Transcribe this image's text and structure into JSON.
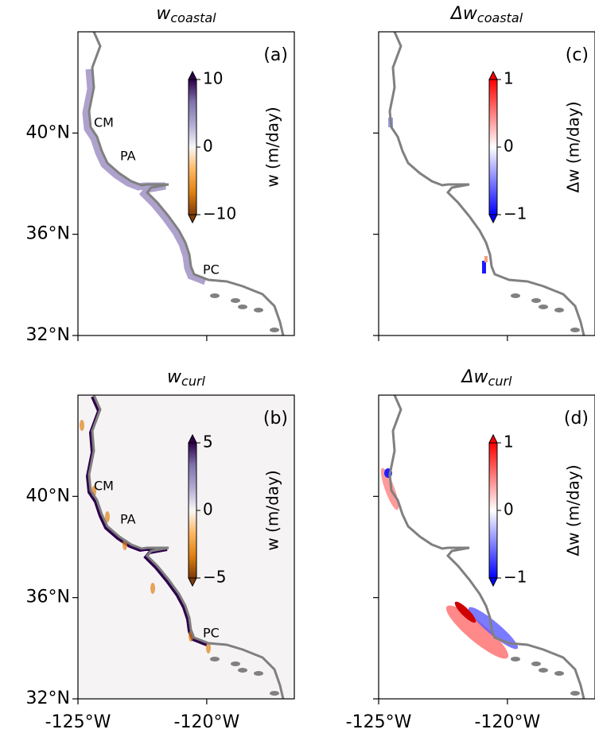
{
  "chart_data": [
    {
      "type": "map",
      "title": "w",
      "title_subscript": "coastal",
      "panel_label": "(a)",
      "xlim": [
        -125,
        -116.6
      ],
      "ylim": [
        32,
        44
      ],
      "yticks": [
        {
          "value": 32,
          "label": "32°N"
        },
        {
          "value": 36,
          "label": "36°N"
        },
        {
          "value": 40,
          "label": "40°N"
        }
      ],
      "annotations": [
        "CM",
        "PA",
        "PC"
      ],
      "colorbar": {
        "clim": [
          -10,
          10
        ],
        "ticks": [
          {
            "value": -10,
            "label": "−10"
          },
          0,
          10
        ],
        "label": "w (m/day)",
        "colors": [
          "#7f3b08",
          "#e08214",
          "#fdb863",
          "#f7f7f7",
          "#b2abd2",
          "#8073ac",
          "#2d004b"
        ]
      }
    },
    {
      "type": "map",
      "title": "Δw",
      "title_subscript": "coastal",
      "panel_label": "(c)",
      "xlim": [
        -125,
        -116.6
      ],
      "ylim": [
        32,
        44
      ],
      "colorbar": {
        "clim": [
          -1,
          1
        ],
        "ticks": [
          {
            "value": -1,
            "label": "−1"
          },
          0,
          1
        ],
        "label": "Δw (m/day)",
        "colors": [
          "#0000ff",
          "#ffffff",
          "#ff0000"
        ]
      }
    },
    {
      "type": "map",
      "title": "w",
      "title_subscript": "curl",
      "panel_label": "(b)",
      "xlim": [
        -125,
        -116.6
      ],
      "ylim": [
        32,
        44
      ],
      "xticks": [
        {
          "value": -125,
          "label": "-125°W"
        },
        {
          "value": -120,
          "label": "-120°W"
        }
      ],
      "yticks": [
        {
          "value": 32,
          "label": "32°N"
        },
        {
          "value": 36,
          "label": "36°N"
        },
        {
          "value": 40,
          "label": "40°N"
        }
      ],
      "annotations": [
        "CM",
        "PA",
        "PC"
      ],
      "colorbar": {
        "clim": [
          -5,
          5
        ],
        "ticks": [
          {
            "value": -5,
            "label": "−5"
          },
          0,
          5
        ],
        "label": "w (m/day)",
        "colors": [
          "#7f3b08",
          "#e08214",
          "#fdb863",
          "#f7f7f7",
          "#b2abd2",
          "#8073ac",
          "#2d004b"
        ]
      }
    },
    {
      "type": "map",
      "title": "Δw",
      "title_subscript": "curl",
      "panel_label": "(d)",
      "xlim": [
        -125,
        -116.6
      ],
      "ylim": [
        32,
        44
      ],
      "xticks": [
        {
          "value": -125,
          "label": "-125°W"
        },
        {
          "value": -120,
          "label": "-120°W"
        }
      ],
      "colorbar": {
        "clim": [
          -1,
          1
        ],
        "ticks": [
          {
            "value": -1,
            "label": "−1"
          },
          0,
          1
        ],
        "label": "Δw (m/day)",
        "colors": [
          "#0000ff",
          "#ffffff",
          "#ff0000"
        ]
      }
    }
  ]
}
